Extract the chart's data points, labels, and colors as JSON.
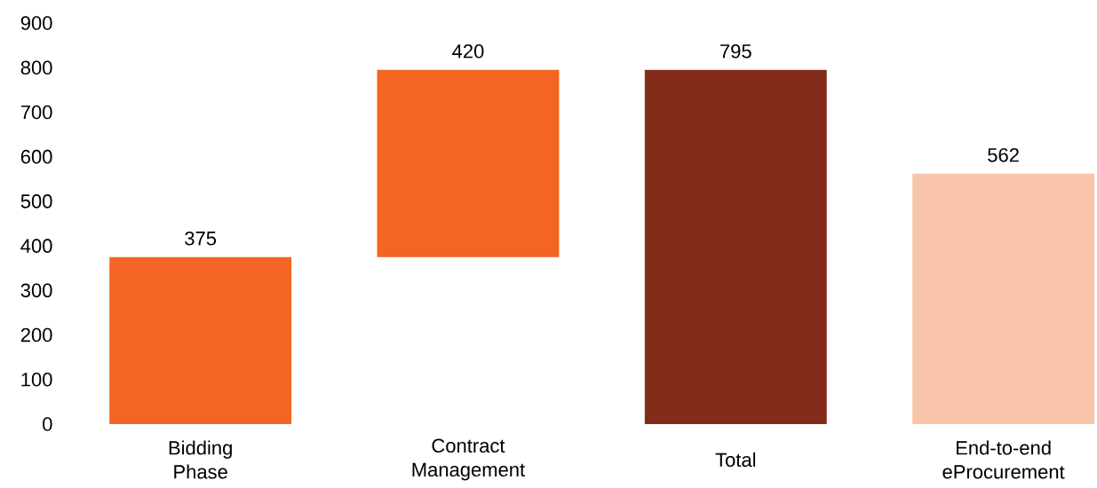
{
  "chart_data": {
    "type": "bar",
    "categories": [
      "Bidding Phase",
      "Contract Management",
      "Total",
      "End-to-end eProcurement"
    ],
    "values": [
      375,
      420,
      795,
      562
    ],
    "base": [
      0,
      375,
      0,
      0
    ],
    "colors": [
      "#f26522",
      "#f26522",
      "#832c1a",
      "#f9c5aa"
    ],
    "ylim": [
      0,
      900
    ],
    "yticks": [
      0,
      100,
      200,
      300,
      400,
      500,
      600,
      700,
      800,
      900
    ],
    "data_labels": true
  }
}
